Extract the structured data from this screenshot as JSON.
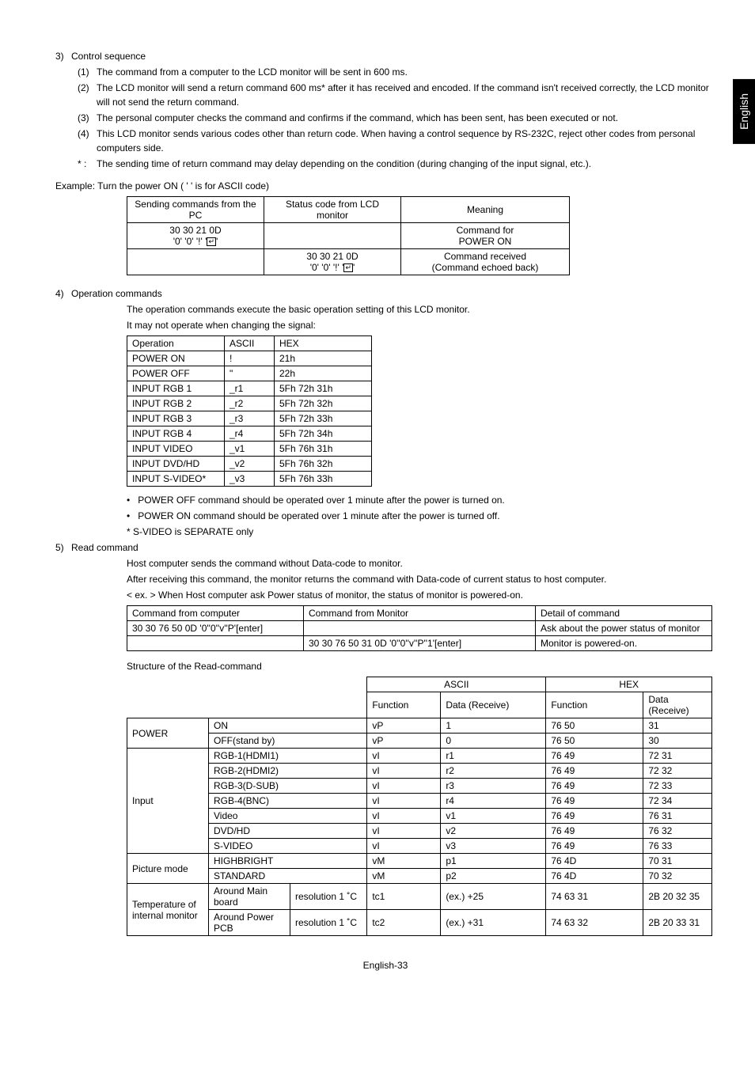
{
  "side_tab": "English",
  "sec3": {
    "num": "3)",
    "title": "Control sequence",
    "items": [
      {
        "n": "(1)",
        "t": "The command from a computer to the LCD monitor will be sent in 600 ms."
      },
      {
        "n": "(2)",
        "t": "The LCD monitor will send a return command 600 ms* after it has received and encoded. If the command isn't received correctly, the LCD monitor will not send the return command."
      },
      {
        "n": "(3)",
        "t": "The personal computer checks the command and confirms if the command, which has been sent, has been executed or not."
      },
      {
        "n": "(4)",
        "t": "This LCD monitor sends various codes other than return code. When having a control sequence by RS-232C, reject other codes from personal computers side."
      },
      {
        "n": "* :",
        "t": "The sending time of return command may delay depending on the condition (during changing of the input signal, etc.)."
      }
    ]
  },
  "example_label": "Example: Turn the power ON ( '  ' is for ASCII code)",
  "ex_table": {
    "h1": "Sending commands from the PC",
    "h2": "Status code from LCD monitor",
    "h3": "Meaning",
    "r1c1a": "30 30 21 0D",
    "r1c1b_prefix": "'0' '0' '!' '",
    "r1c1b_suffix": "'",
    "r1c3a": "Command for",
    "r1c3b": "POWER ON",
    "r2c2a": "30 30 21 0D",
    "r2c2b_prefix": "'0' '0' '!' '",
    "r2c2b_suffix": "'",
    "r2c3a": "Command received",
    "r2c3b": "(Command echoed back)"
  },
  "sec4": {
    "num": "4)",
    "title": "Operation commands",
    "p1": "The operation commands execute the basic operation setting of this LCD monitor.",
    "p2": "It may not operate when changing the signal:"
  },
  "ops_table": {
    "h": [
      "Operation",
      "ASCII",
      "HEX"
    ],
    "rows": [
      [
        "POWER ON",
        "!",
        "21h"
      ],
      [
        "POWER OFF",
        "\"",
        "22h"
      ],
      [
        "INPUT RGB 1",
        "_r1",
        "5Fh  72h  31h"
      ],
      [
        "INPUT RGB 2",
        "_r2",
        "5Fh  72h  32h"
      ],
      [
        "INPUT RGB 3",
        "_r3",
        "5Fh  72h  33h"
      ],
      [
        "INPUT RGB 4",
        "_r4",
        "5Fh  72h  34h"
      ],
      [
        "INPUT VIDEO",
        "_v1",
        "5Fh  76h  31h"
      ],
      [
        "INPUT DVD/HD",
        "_v2",
        "5Fh  76h  32h"
      ],
      [
        "INPUT S-VIDEO*",
        "_v3",
        "5Fh  76h  33h"
      ]
    ]
  },
  "bullets4": [
    "POWER OFF command should be operated over 1 minute after the power is turned on.",
    "POWER ON command should be operated over 1 minute after the power is turned off."
  ],
  "svideo_note": "*  S-VIDEO is SEPARATE only",
  "sec5": {
    "num": "5)",
    "title": "Read command",
    "p1": "Host computer sends the command without Data-code to monitor.",
    "p2": "After receiving this command, the monitor returns the command with Data-code of current status to host computer.",
    "p3": "< ex. > When Host computer ask Power status of monitor, the status of monitor is powered-on."
  },
  "read_tbl1": {
    "h": [
      "Command from computer",
      "Command from Monitor",
      "Detail of command"
    ],
    "r1": [
      "30 30 76 50 0D    '0''0''v''P'[enter]",
      "",
      "Ask about the power status of monitor"
    ],
    "r2": [
      "",
      "30 30 76 50  31 0D     '0''0''v''P''1'[enter]",
      "Monitor is powered-on."
    ]
  },
  "struct_label": "Structure of the Read-command",
  "read_tbl2": {
    "top": [
      "ASCII",
      "HEX"
    ],
    "sub": [
      "Function",
      "Data (Receive)",
      "Function",
      "Data (Receive)"
    ],
    "power": {
      "label": "POWER",
      "rows": [
        [
          "ON",
          "vP",
          "1",
          "76 50",
          "31"
        ],
        [
          "OFF(stand by)",
          "vP",
          "0",
          "76 50",
          "30"
        ]
      ]
    },
    "input": {
      "label": "Input",
      "rows": [
        [
          "RGB-1(HDMI1)",
          "vI",
          "r1",
          "76 49",
          "72 31"
        ],
        [
          "RGB-2(HDMI2)",
          "vI",
          "r2",
          "76 49",
          "72 32"
        ],
        [
          "RGB-3(D-SUB)",
          "vI",
          "r3",
          "76 49",
          "72 33"
        ],
        [
          "RGB-4(BNC)",
          "vI",
          "r4",
          "76 49",
          "72 34"
        ],
        [
          "Video",
          "vI",
          "v1",
          "76 49",
          "76 31"
        ],
        [
          "DVD/HD",
          "vI",
          "v2",
          "76 49",
          "76 32"
        ],
        [
          "S-VIDEO",
          "vI",
          "v3",
          "76 49",
          "76 33"
        ]
      ]
    },
    "picture": {
      "label": "Picture mode",
      "rows": [
        [
          "HIGHBRIGHT",
          "vM",
          "p1",
          "76 4D",
          "70 31"
        ],
        [
          "STANDARD",
          "vM",
          "p2",
          "76 4D",
          "70 32"
        ]
      ]
    },
    "temp": {
      "label": "Temperature of internal monitor",
      "rows": [
        {
          "a": "Around Main board",
          "b": "resolution 1 ˚C",
          "c": "tc1",
          "d": "(ex.) +25",
          "e": "74 63 31",
          "f": "2B 20 32 35"
        },
        {
          "a": "Around Power PCB",
          "b": "resolution 1 ˚C",
          "c": "tc2",
          "d": "(ex.) +31",
          "e": "74 63 32",
          "f": "2B 20 33 31"
        }
      ]
    }
  },
  "footer": "English-33"
}
